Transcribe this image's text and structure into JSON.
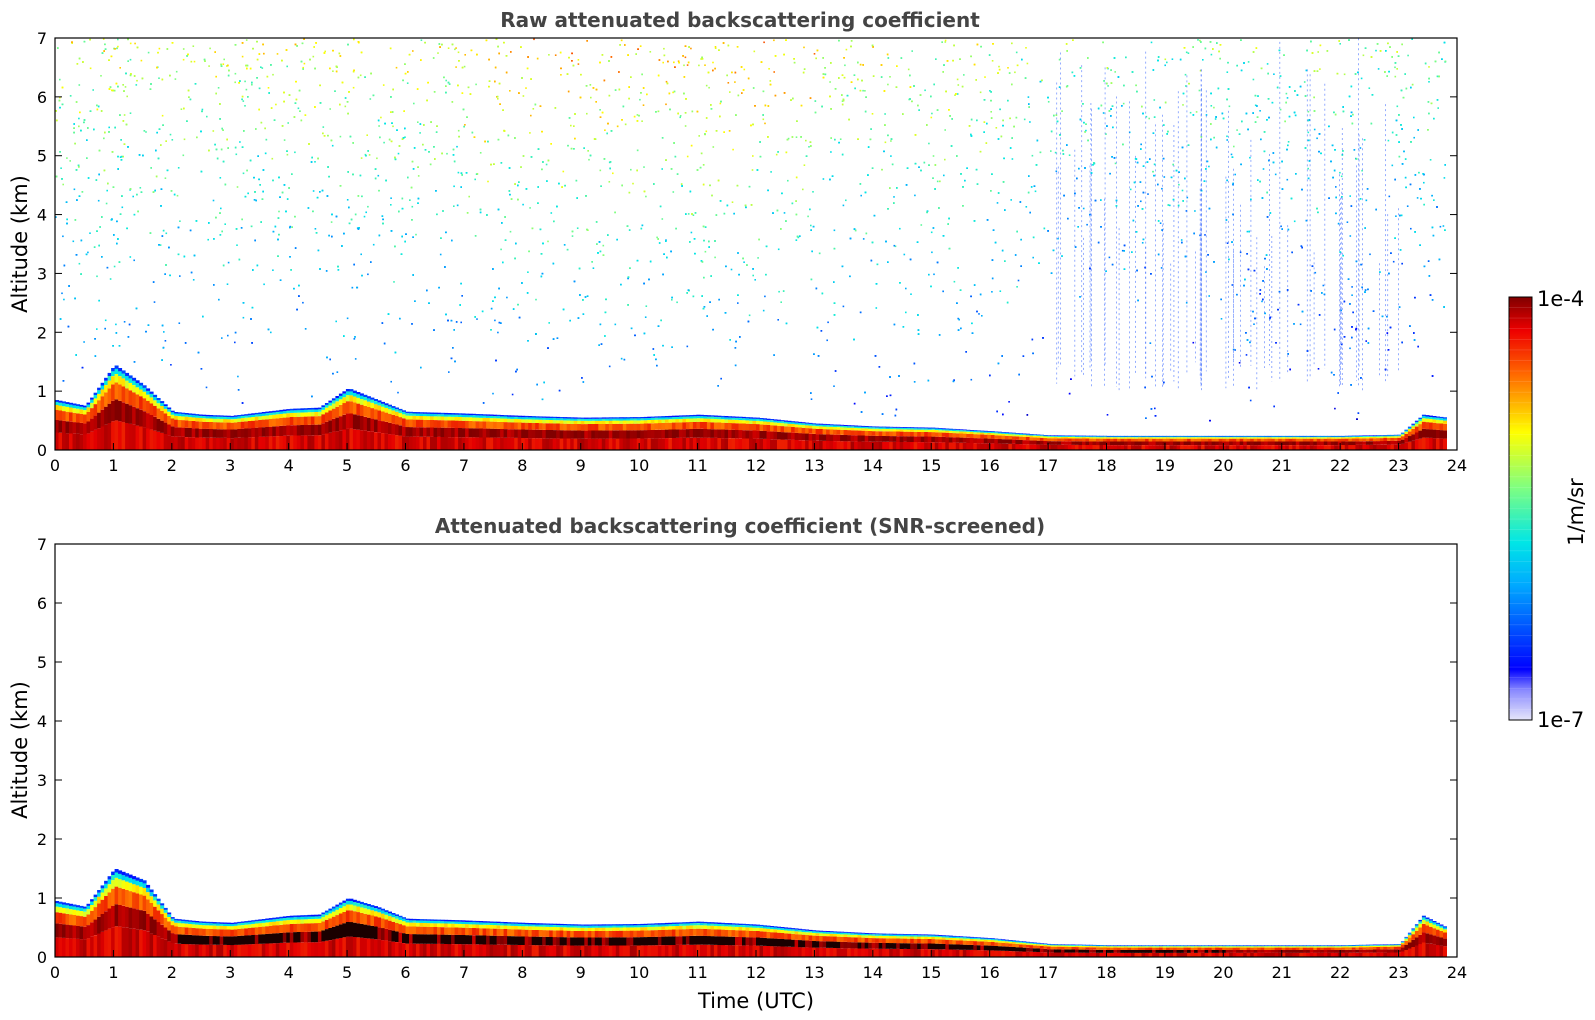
{
  "chart_data": [
    {
      "type": "heatmap",
      "title": "Raw attenuated backscattering coefficient",
      "xlabel": "",
      "ylabel": "Altitude (km)",
      "xlim": [
        0,
        24
      ],
      "ylim": [
        0,
        7
      ],
      "x_ticks": [
        "0",
        "1",
        "2",
        "3",
        "4",
        "5",
        "6",
        "7",
        "8",
        "9",
        "10",
        "11",
        "12",
        "13",
        "14",
        "15",
        "16",
        "17",
        "18",
        "19",
        "20",
        "21",
        "22",
        "23",
        "24"
      ],
      "y_ticks": [
        "0",
        "1",
        "2",
        "3",
        "4",
        "5",
        "6",
        "7"
      ],
      "data_end_time": 23.8,
      "layer_top_km": [
        [
          0,
          0.85
        ],
        [
          0.5,
          0.75
        ],
        [
          1,
          1.45
        ],
        [
          1.5,
          1.1
        ],
        [
          2,
          0.65
        ],
        [
          2.5,
          0.6
        ],
        [
          3,
          0.58
        ],
        [
          4,
          0.7
        ],
        [
          4.5,
          0.72
        ],
        [
          5,
          1.05
        ],
        [
          5.5,
          0.85
        ],
        [
          6,
          0.65
        ],
        [
          7,
          0.62
        ],
        [
          8,
          0.58
        ],
        [
          9,
          0.55
        ],
        [
          10,
          0.56
        ],
        [
          11,
          0.6
        ],
        [
          12,
          0.55
        ],
        [
          13,
          0.45
        ],
        [
          14,
          0.4
        ],
        [
          15,
          0.38
        ],
        [
          16,
          0.32
        ],
        [
          17,
          0.25
        ],
        [
          18,
          0.24
        ],
        [
          19,
          0.24
        ],
        [
          20,
          0.24
        ],
        [
          21,
          0.24
        ],
        [
          22,
          0.24
        ],
        [
          23,
          0.26
        ],
        [
          23.4,
          0.6
        ],
        [
          23.8,
          0.55
        ]
      ],
      "noise_pattern": "speckled signal above the boundary layer, increasing with altitude; strongest (yellow-red) around 7-13 UTC near the top, sparse blue vertical streaks 17-22 UTC"
    },
    {
      "type": "heatmap",
      "title": "Attenuated backscattering coefficient (SNR-screened)",
      "xlabel": "Time (UTC)",
      "ylabel": "Altitude (km)",
      "xlim": [
        0,
        24
      ],
      "ylim": [
        0,
        7
      ],
      "x_ticks": [
        "0",
        "1",
        "2",
        "3",
        "4",
        "5",
        "6",
        "7",
        "8",
        "9",
        "10",
        "11",
        "12",
        "13",
        "14",
        "15",
        "16",
        "17",
        "18",
        "19",
        "20",
        "21",
        "22",
        "23",
        "24"
      ],
      "y_ticks": [
        "0",
        "1",
        "2",
        "3",
        "4",
        "5",
        "6",
        "7"
      ],
      "data_end_time": 23.8,
      "layer_top_km": [
        [
          0,
          0.95
        ],
        [
          0.5,
          0.85
        ],
        [
          1,
          1.5
        ],
        [
          1.5,
          1.3
        ],
        [
          2,
          0.65
        ],
        [
          2.5,
          0.6
        ],
        [
          3,
          0.58
        ],
        [
          4,
          0.7
        ],
        [
          4.5,
          0.72
        ],
        [
          5,
          1.0
        ],
        [
          5.5,
          0.85
        ],
        [
          6,
          0.65
        ],
        [
          7,
          0.62
        ],
        [
          8,
          0.58
        ],
        [
          9,
          0.55
        ],
        [
          10,
          0.56
        ],
        [
          11,
          0.6
        ],
        [
          12,
          0.55
        ],
        [
          13,
          0.45
        ],
        [
          14,
          0.4
        ],
        [
          15,
          0.38
        ],
        [
          16,
          0.32
        ],
        [
          17,
          0.22
        ],
        [
          18,
          0.2
        ],
        [
          19,
          0.2
        ],
        [
          20,
          0.2
        ],
        [
          21,
          0.2
        ],
        [
          22,
          0.2
        ],
        [
          23,
          0.22
        ],
        [
          23.4,
          0.7
        ],
        [
          23.8,
          0.5
        ]
      ],
      "noise_pattern": "noise removed above the boundary layer; only a few isolated points remain"
    }
  ],
  "colorbar": {
    "min_label": "1e-7",
    "max_label": "1e-4",
    "label": "1/m/sr",
    "colormap": "jet"
  }
}
